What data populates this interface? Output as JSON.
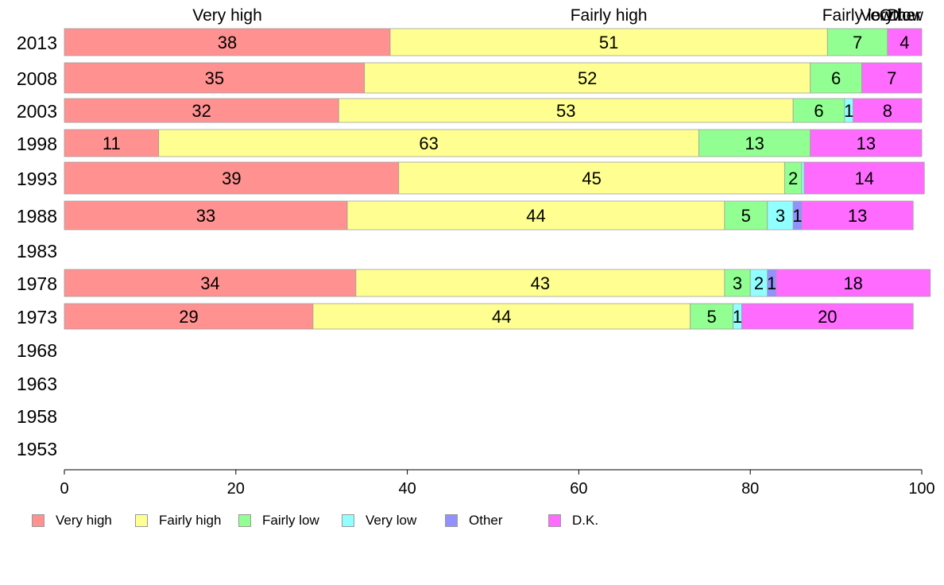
{
  "chart_data": {
    "type": "bar",
    "orientation": "horizontal",
    "stacked": true,
    "categories": [
      "2013",
      "2008",
      "2003",
      "1998",
      "1993",
      "1988",
      "1983",
      "1978",
      "1973",
      "1968",
      "1963",
      "1958",
      "1953"
    ],
    "series": [
      {
        "name": "Very high",
        "color": "#ff9191",
        "values": [
          38,
          35,
          32,
          11,
          39,
          33,
          null,
          34,
          29,
          null,
          null,
          null,
          null
        ]
      },
      {
        "name": "Fairly high",
        "color": "#ffff91",
        "values": [
          51,
          52,
          53,
          63,
          45,
          44,
          null,
          43,
          44,
          null,
          null,
          null,
          null
        ]
      },
      {
        "name": "Fairly low",
        "color": "#91ff91",
        "values": [
          7,
          6,
          6,
          13,
          2,
          5,
          null,
          3,
          5,
          null,
          null,
          null,
          null
        ]
      },
      {
        "name": "Very low",
        "color": "#91ffff",
        "values": [
          0,
          0,
          1,
          0,
          0.3,
          3,
          null,
          2,
          1,
          null,
          null,
          null,
          null
        ]
      },
      {
        "name": "Other",
        "color": "#9191ff",
        "values": [
          0,
          0,
          0,
          0,
          0,
          1,
          null,
          1,
          0,
          null,
          null,
          null,
          null
        ]
      },
      {
        "name": "D.K.",
        "color": "#ff6bff",
        "values": [
          4,
          7,
          8,
          13,
          14,
          13,
          null,
          18,
          20,
          null,
          null,
          null,
          null
        ]
      }
    ],
    "bar_labels": [
      [
        "38",
        "51",
        "7",
        "",
        "",
        "4"
      ],
      [
        "35",
        "52",
        "6",
        "",
        "",
        "7"
      ],
      [
        "32",
        "53",
        "6",
        "1",
        "",
        "8"
      ],
      [
        "11",
        "63",
        "13",
        "",
        "",
        "13"
      ],
      [
        "39",
        "45",
        "2",
        "",
        "",
        "14"
      ],
      [
        "33",
        "44",
        "5",
        "3",
        "1",
        "13"
      ],
      [
        "",
        "",
        "",
        "",
        "",
        ""
      ],
      [
        "34",
        "43",
        "3",
        "2",
        "1",
        "18"
      ],
      [
        "29",
        "44",
        "5",
        "1",
        "",
        "20"
      ],
      [
        "",
        "",
        "",
        "",
        "",
        ""
      ],
      [
        "",
        "",
        "",
        "",
        "",
        ""
      ],
      [
        "",
        "",
        "",
        "",
        "",
        ""
      ],
      [
        "",
        "",
        "",
        "",
        "",
        ""
      ]
    ],
    "top_labels": [
      "Very high",
      "Fairly high",
      "Fairly low",
      "Very low",
      "Other",
      "D..."
    ],
    "xlim": [
      0,
      100
    ],
    "xticks": [
      "0",
      "20",
      "40",
      "60",
      "80",
      "100"
    ],
    "grid": false,
    "legend_position": "bottom-left"
  },
  "legend": [
    {
      "label": "Very high",
      "color": "#ff9191"
    },
    {
      "label": "Fairly high",
      "color": "#ffff91"
    },
    {
      "label": "Fairly low",
      "color": "#91ff91"
    },
    {
      "label": "Very low",
      "color": "#91ffff"
    },
    {
      "label": "Other",
      "color": "#9191ff"
    },
    {
      "label": "D.K.",
      "color": "#ff6bff"
    }
  ]
}
